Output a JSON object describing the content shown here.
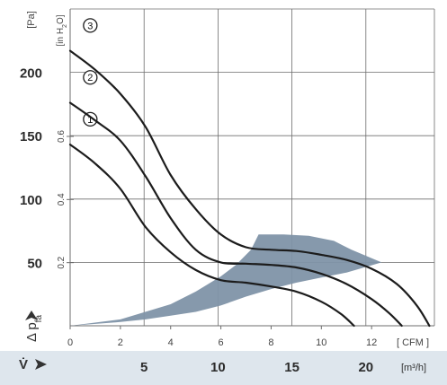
{
  "chart_data": {
    "type": "line",
    "units": {
      "pa": "[Pa]",
      "inh2o": "[in H",
      "inh2o_sub": "2",
      "inh2o_end": "O]",
      "cfm": "[ CFM ]",
      "m3h": "[m³/h]"
    },
    "axis_labels": {
      "y": "Δ p",
      "y_sub": "fa",
      "x": "V̇"
    },
    "pa_ticks": [
      0,
      50,
      100,
      150,
      200
    ],
    "pa_tick_labels": [
      "50",
      "100",
      "150",
      "200"
    ],
    "inh2o_ticks": [
      0.2,
      0.4,
      0.6
    ],
    "inh2o_tick_labels": [
      "0.2",
      "0.4",
      "0.6"
    ],
    "cfm_ticks": [
      0,
      2,
      4,
      6,
      8,
      10,
      12
    ],
    "cfm_tick_labels": [
      "0",
      "2",
      "4",
      "6",
      "8",
      "10",
      "12"
    ],
    "m3h_ticks": [
      5,
      10,
      15,
      20
    ],
    "m3h_tick_labels": [
      "5",
      "10",
      "15",
      "20"
    ],
    "xlim_cfm": [
      0,
      14.5
    ],
    "ylim_pa": [
      0,
      250
    ],
    "grid": true,
    "series": [
      {
        "name": "1",
        "x_cfm": [
          0,
          1,
          2,
          3,
          4,
          5,
          6,
          7,
          8,
          9,
          10,
          10.8,
          11.3
        ],
        "y_pa": [
          143,
          128,
          108,
          78,
          58,
          44,
          36,
          34,
          31,
          27,
          19,
          9,
          0
        ]
      },
      {
        "name": "2",
        "x_cfm": [
          0,
          1,
          2,
          3,
          4,
          5,
          6,
          7,
          8,
          9,
          10,
          11,
          12,
          12.7,
          13.2
        ],
        "y_pa": [
          176,
          162,
          146,
          118,
          85,
          60,
          50,
          49,
          48,
          46,
          41,
          33,
          21,
          10,
          0
        ]
      },
      {
        "name": "3",
        "x_cfm": [
          0,
          1,
          2,
          3,
          4,
          5,
          6,
          7,
          8,
          9,
          10,
          11,
          12,
          13,
          13.8,
          14.3
        ],
        "y_pa": [
          217,
          202,
          183,
          157,
          119,
          92,
          72,
          62,
          60,
          59,
          56,
          52,
          45,
          33,
          16,
          0
        ]
      }
    ],
    "operating_range": {
      "upper_x_cfm": [
        0,
        2,
        4,
        5,
        6,
        6.6,
        7.2,
        7.5,
        8.5,
        9.5,
        10.5,
        11.2,
        12.4
      ],
      "upper_y_pa": [
        0,
        5,
        17,
        27,
        39,
        48,
        60,
        72,
        72,
        71,
        67,
        60,
        50
      ],
      "lower_x_cfm": [
        12.4,
        11,
        10,
        9,
        8,
        7,
        6,
        5,
        4,
        3,
        2,
        0
      ],
      "lower_y_pa": [
        50,
        42,
        38,
        34,
        29,
        23,
        16,
        11,
        8,
        5,
        3,
        0
      ],
      "color": "#7f94a8"
    },
    "colors": {
      "curve": "#1c1c1c",
      "grid": "#6d6d6d",
      "axis_band": "#dee6ed",
      "ticks": "#444444"
    }
  }
}
